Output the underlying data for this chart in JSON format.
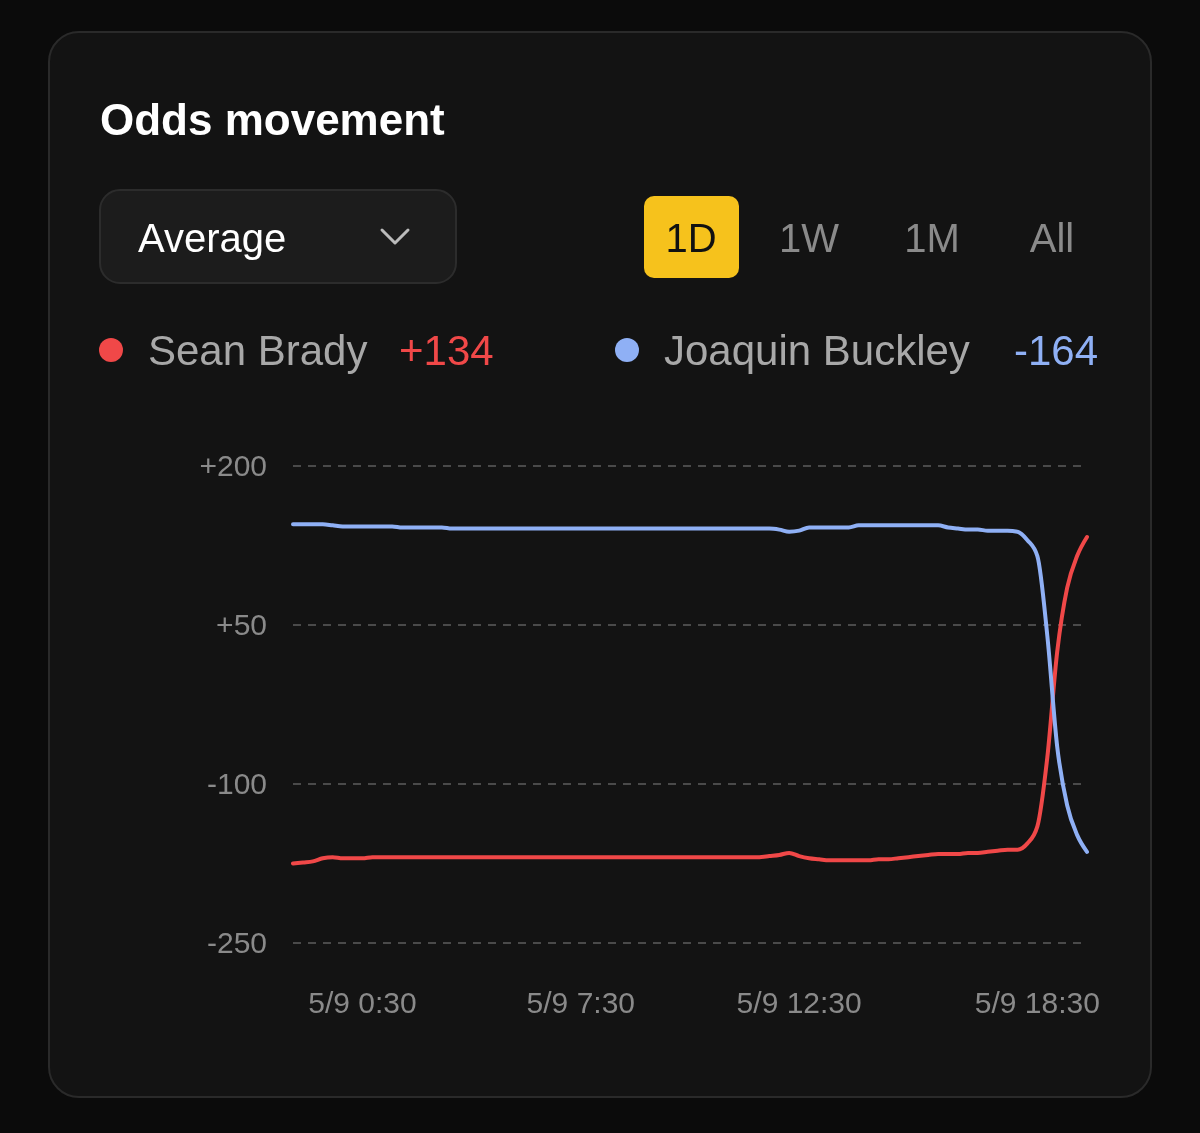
{
  "chart_data": {
    "type": "line",
    "title": "Odds movement",
    "categories": [
      null,
      null,
      null,
      null,
      null,
      null,
      null,
      "5/9 0:30",
      null,
      null,
      null,
      null,
      null,
      null,
      null,
      null,
      null,
      null,
      null,
      null,
      null,
      null,
      null,
      null,
      null,
      null,
      null,
      null,
      null,
      "5/9 7:30",
      null,
      null,
      null,
      null,
      null,
      null,
      null,
      null,
      null,
      null,
      null,
      null,
      null,
      null,
      null,
      null,
      null,
      null,
      null,
      null,
      null,
      "5/9 12:30",
      null,
      null,
      null,
      null,
      null,
      null,
      null,
      null,
      null,
      null,
      null,
      null,
      null,
      null,
      null,
      null,
      null,
      null,
      null,
      null,
      null,
      null,
      null,
      "5/9 18:30",
      null,
      null,
      null,
      null,
      null
    ],
    "series": [
      {
        "name": "Sean Brady",
        "color": "#f04848",
        "values": [
          -175,
          -174,
          -173,
          -170,
          -169,
          -170,
          -170,
          -170,
          -169,
          -169,
          -169,
          -169,
          -169,
          -169,
          -169,
          -169,
          -169,
          -169,
          -169,
          -169,
          -169,
          -169,
          -169,
          -169,
          -169,
          -169,
          -169,
          -169,
          -169,
          -169,
          -169,
          -169,
          -169,
          -169,
          -169,
          -169,
          -169,
          -169,
          -169,
          -169,
          -169,
          -169,
          -169,
          -169,
          -169,
          -169,
          -169,
          -169,
          -168,
          -167,
          -165,
          -168,
          -170,
          -171,
          -172,
          -172,
          -172,
          -172,
          -172,
          -171,
          -171,
          -170,
          -169,
          -168,
          -167,
          -166,
          -166,
          -166,
          -165,
          -165,
          -164,
          -163,
          -162,
          -162,
          -156,
          -140,
          -75,
          25,
          85,
          115,
          133
        ]
      },
      {
        "name": "Joaquin Buckley",
        "color": "#8fb0f5",
        "values": [
          145,
          145,
          145,
          145,
          144,
          143,
          143,
          143,
          143,
          143,
          143,
          142,
          142,
          142,
          142,
          142,
          141,
          141,
          141,
          141,
          141,
          141,
          141,
          141,
          141,
          141,
          141,
          141,
          141,
          141,
          141,
          141,
          141,
          141,
          141,
          141,
          141,
          141,
          141,
          141,
          141,
          141,
          141,
          141,
          141,
          141,
          141,
          141,
          141,
          140,
          138,
          139,
          142,
          142,
          142,
          142,
          142,
          144,
          144,
          144,
          144,
          144,
          144,
          144,
          144,
          144,
          142,
          141,
          140,
          140,
          139,
          139,
          139,
          138,
          130,
          115,
          40,
          -65,
          -120,
          -148,
          -164
        ]
      }
    ],
    "ylim": [
      -250,
      200
    ],
    "yticks": [
      {
        "value": 200,
        "label": "+200"
      },
      {
        "value": 50,
        "label": "+50"
      },
      {
        "value": -100,
        "label": "-100"
      },
      {
        "value": -250,
        "label": "-250"
      }
    ],
    "grid": "y",
    "legend": "top left",
    "line_style": "solid",
    "marker": "none",
    "annotations": [
      "Average",
      "1D",
      "1W",
      "1M",
      "All",
      "+134",
      "-164"
    ]
  }
}
